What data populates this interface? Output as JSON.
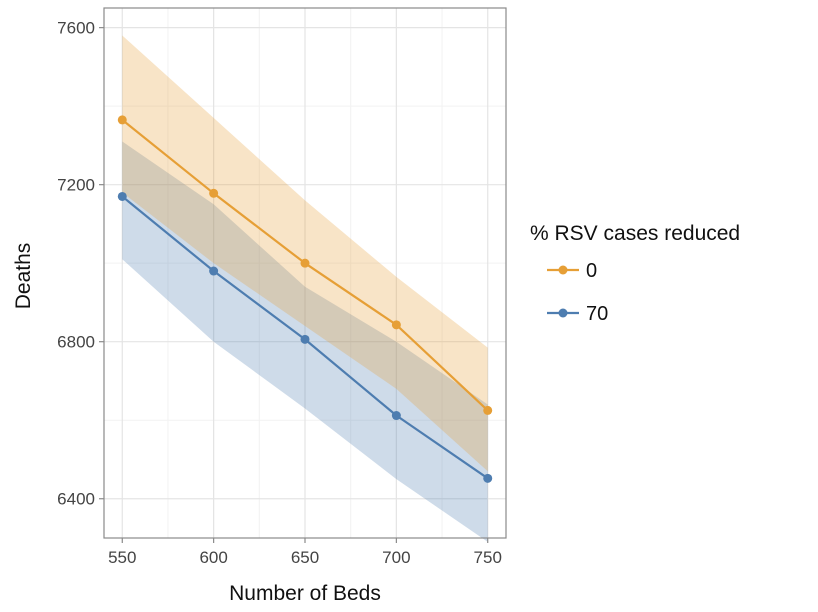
{
  "chart_data": {
    "type": "line",
    "xlabel": "Number of Beds",
    "ylabel": "Deaths",
    "x": [
      550,
      600,
      650,
      700,
      750
    ],
    "xlim": [
      540,
      760
    ],
    "ylim": [
      6300,
      7650
    ],
    "xticks": [
      550,
      600,
      650,
      700,
      750
    ],
    "yticks": [
      6400,
      6800,
      7200,
      7600
    ],
    "grid": true,
    "legend": {
      "title": "% RSV cases reduced",
      "placement": "right"
    },
    "series": [
      {
        "name": "0",
        "color": "#E69F36",
        "values": [
          7365,
          7178,
          7000,
          6843,
          6625
        ],
        "lower": [
          7180,
          7000,
          6840,
          6680,
          6470
        ],
        "upper": [
          7580,
          7370,
          7160,
          6965,
          6785
        ]
      },
      {
        "name": "70",
        "color": "#4E7DB0",
        "values": [
          7170,
          6980,
          6806,
          6612,
          6452
        ],
        "lower": [
          7010,
          6800,
          6630,
          6450,
          6290
        ],
        "upper": [
          7310,
          7150,
          6940,
          6800,
          6640
        ]
      }
    ]
  }
}
